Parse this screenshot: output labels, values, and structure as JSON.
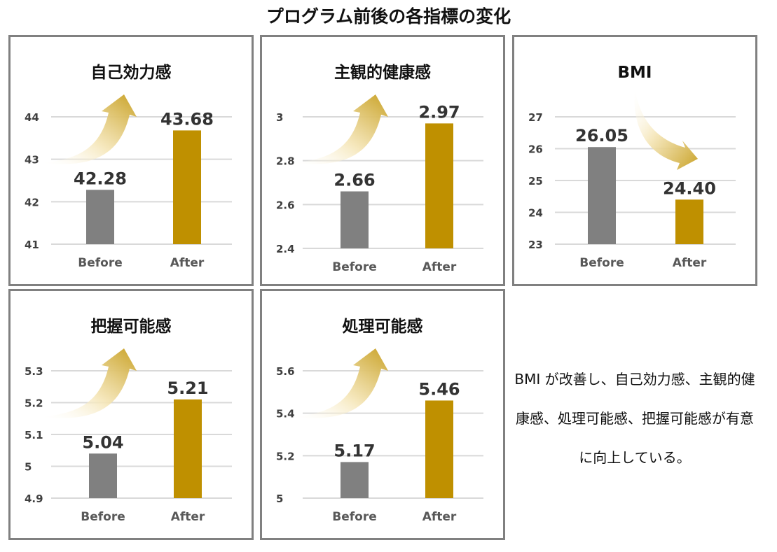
{
  "page_title": "プログラム前後の各指標の変化",
  "colors": {
    "before": "#808080",
    "after": "#BF9000",
    "grid": "#D9D9D9",
    "panel_border": "#808080",
    "arrow": "#C9A227"
  },
  "summary_text": "BMI が改善し、自己効力感、主観的健康感、処理可能感、把握可能感が有意に向上している。",
  "chart_data": [
    {
      "id": "self-efficacy",
      "type": "bar",
      "title": "自己効力感",
      "categories": [
        "Before",
        "After"
      ],
      "values": [
        42.28,
        43.68
      ],
      "value_labels": [
        "42.28",
        "43.68"
      ],
      "ylim": [
        41,
        44
      ],
      "yticks": [
        41,
        42,
        43,
        44
      ],
      "ytick_labels": [
        "41",
        "42",
        "43",
        "44"
      ],
      "grid": true,
      "arrow": "up"
    },
    {
      "id": "subjective-health",
      "type": "bar",
      "title": "主観的健康感",
      "categories": [
        "Before",
        "After"
      ],
      "values": [
        2.66,
        2.97
      ],
      "value_labels": [
        "2.66",
        "2.97"
      ],
      "ylim": [
        2.4,
        3
      ],
      "yticks": [
        2.4,
        2.6,
        2.8,
        3
      ],
      "ytick_labels": [
        "2.4",
        "2.6",
        "2.8",
        "3"
      ],
      "grid": true,
      "arrow": "up"
    },
    {
      "id": "bmi",
      "type": "bar",
      "title": "BMI",
      "categories": [
        "Before",
        "After"
      ],
      "values": [
        26.05,
        24.4
      ],
      "value_labels": [
        "26.05",
        "24.40"
      ],
      "ylim": [
        23,
        27
      ],
      "yticks": [
        23,
        24,
        25,
        26,
        27
      ],
      "ytick_labels": [
        "23",
        "24",
        "25",
        "26",
        "27"
      ],
      "grid": true,
      "arrow": "down"
    },
    {
      "id": "comprehensibility",
      "type": "bar",
      "title": "把握可能感",
      "categories": [
        "Before",
        "After"
      ],
      "values": [
        5.04,
        5.21
      ],
      "value_labels": [
        "5.04",
        "5.21"
      ],
      "ylim": [
        4.9,
        5.3
      ],
      "yticks": [
        4.9,
        5,
        5.1,
        5.2,
        5.3
      ],
      "ytick_labels": [
        "4.9",
        "5",
        "5.1",
        "5.2",
        "5.3"
      ],
      "grid": true,
      "arrow": "up"
    },
    {
      "id": "manageability",
      "type": "bar",
      "title": "処理可能感",
      "categories": [
        "Before",
        "After"
      ],
      "values": [
        5.17,
        5.46
      ],
      "value_labels": [
        "5.17",
        "5.46"
      ],
      "ylim": [
        5,
        5.6
      ],
      "yticks": [
        5,
        5.2,
        5.4,
        5.6
      ],
      "ytick_labels": [
        "5",
        "5.2",
        "5.4",
        "5.6"
      ],
      "grid": true,
      "arrow": "up"
    }
  ]
}
